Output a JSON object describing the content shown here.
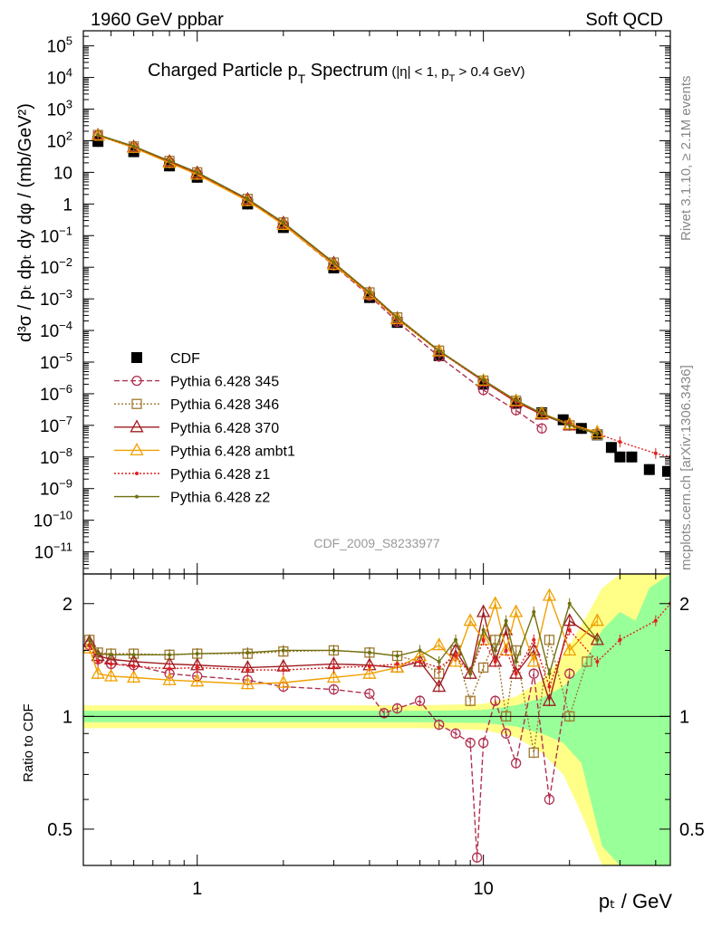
{
  "header": {
    "beam": "1960 GeV ppbar",
    "category": "Soft QCD"
  },
  "side_labels": {
    "rivet": "Rivet 3.1.10, ≥ 2.1M events",
    "mcplots": "mcplots.cern.ch [arXiv:1306.3436]"
  },
  "analysis_id": "CDF_2009_S8233977",
  "chart_data": [
    {
      "panel": "main",
      "type": "scatter",
      "title_main": "Charged Particle p",
      "title_sub": "T",
      "title_rest": " Spectrum",
      "title_cut": "(|η| < 1, p",
      "title_cut_sub": "T",
      "title_cut_rest": " > 0.4 GeV)",
      "ylabel": "d³σ / pₜ dpₜ dy dφ / (mb/GeV²)",
      "xlabel": "pₜ / GeV",
      "x_scale": "log",
      "y_scale": "log",
      "xlim": [
        0.4,
        45
      ],
      "ylim": [
        2e-12,
        300000.0
      ],
      "x_ticks": [
        {
          "value": 1,
          "label": "1"
        },
        {
          "value": 10,
          "label": "10"
        }
      ],
      "y_ticks": [
        {
          "value": 100000.0,
          "base": "10",
          "exp": "5"
        },
        {
          "value": 10000.0,
          "base": "10",
          "exp": "4"
        },
        {
          "value": 1000.0,
          "base": "10",
          "exp": "3"
        },
        {
          "value": 100.0,
          "base": "10",
          "exp": "2"
        },
        {
          "value": 10,
          "base": "10",
          "exp": ""
        },
        {
          "value": 1,
          "base": "1",
          "exp": ""
        },
        {
          "value": 0.1,
          "base": "10",
          "exp": "−1"
        },
        {
          "value": 0.01,
          "base": "10",
          "exp": "−2"
        },
        {
          "value": 0.001,
          "base": "10",
          "exp": "−3"
        },
        {
          "value": 0.0001,
          "base": "10",
          "exp": "−4"
        },
        {
          "value": 1e-05,
          "base": "10",
          "exp": "−5"
        },
        {
          "value": 1e-06,
          "base": "10",
          "exp": "−6"
        },
        {
          "value": 1e-07,
          "base": "10",
          "exp": "−7"
        },
        {
          "value": 1e-08,
          "base": "10",
          "exp": "−8"
        },
        {
          "value": 1e-09,
          "base": "10",
          "exp": "−9"
        },
        {
          "value": 1e-10,
          "base": "10",
          "exp": "−10"
        },
        {
          "value": 1e-11,
          "base": "10",
          "exp": "−11"
        }
      ],
      "legend_position": "left-middle",
      "series": [
        {
          "name": "CDF",
          "color": "#000000",
          "marker": "square-filled",
          "line": "none",
          "x": [
            0.45,
            0.6,
            0.8,
            1.0,
            1.5,
            2.0,
            3.0,
            4.0,
            5.0,
            7.0,
            10.0,
            13.0,
            16.0,
            19.0,
            22.0,
            25.0,
            28.0,
            30.0,
            33.0,
            38.0,
            44.0
          ],
          "y": [
            95,
            45,
            16,
            7,
            1.0,
            0.18,
            0.0095,
            0.0011,
            0.00018,
            1.6e-05,
            2e-06,
            5e-07,
            2.5e-07,
            1.5e-07,
            8e-08,
            5e-08,
            2e-08,
            1e-08,
            1e-08,
            4e-09,
            3.5e-09
          ]
        },
        {
          "name": "Pythia 6.428 345",
          "color": "#b03050",
          "marker": "circle-open",
          "line": "dashed",
          "x": [
            0.45,
            0.6,
            0.8,
            1.0,
            1.5,
            2.0,
            3.0,
            4.0,
            5.0,
            7.0,
            10.0,
            13.0,
            16.0
          ],
          "y": [
            150,
            63,
            21,
            9,
            1.3,
            0.22,
            0.0115,
            0.00125,
            0.00019,
            1.5e-05,
            1.3e-06,
            3e-07,
            8e-08
          ]
        },
        {
          "name": "Pythia 6.428 346",
          "color": "#a07830",
          "marker": "square-open",
          "line": "dotted",
          "x": [
            0.45,
            0.6,
            0.8,
            1.0,
            1.5,
            2.0,
            3.0,
            4.0,
            5.0,
            7.0,
            10.0,
            13.0,
            16.0,
            20.0,
            25.0
          ],
          "y": [
            152,
            66,
            23,
            10,
            1.45,
            0.26,
            0.014,
            0.0016,
            0.00026,
            2.3e-05,
            2.6e-06,
            6e-07,
            2.4e-07,
            1e-07,
            5e-08
          ]
        },
        {
          "name": "Pythia 6.428 370",
          "color": "#a01c20",
          "marker": "triangle-open",
          "line": "solid",
          "x": [
            0.45,
            0.6,
            0.8,
            1.0,
            1.5,
            2.0,
            3.0,
            4.0,
            5.0,
            7.0,
            10.0,
            13.0,
            16.0,
            20.0,
            25.0
          ],
          "y": [
            150,
            64,
            22,
            9.6,
            1.4,
            0.25,
            0.0135,
            0.0015,
            0.00024,
            2.2e-05,
            2.5e-06,
            5.5e-07,
            2.2e-07,
            1e-07,
            6e-08
          ]
        },
        {
          "name": "Pythia 6.428 ambt1",
          "color": "#f0a000",
          "marker": "triangle-open",
          "line": "solid",
          "x": [
            0.45,
            0.6,
            0.8,
            1.0,
            1.5,
            2.0,
            3.0,
            4.0,
            5.0,
            7.0,
            10.0,
            13.0,
            16.0,
            20.0,
            25.0
          ],
          "y": [
            145,
            60,
            20,
            8.5,
            1.25,
            0.22,
            0.012,
            0.0014,
            0.00023,
            2.2e-05,
            2.6e-06,
            6e-07,
            2.4e-07,
            1.1e-07,
            6e-08
          ]
        },
        {
          "name": "Pythia 6.428 z1",
          "color": "#e02020",
          "marker": "dot",
          "line": "dotted",
          "x": [
            0.45,
            0.6,
            0.8,
            1.0,
            1.5,
            2.0,
            3.0,
            4.0,
            5.0,
            7.0,
            10.0,
            13.0,
            16.0,
            20.0,
            25.0,
            30.0,
            40.0,
            45.0
          ],
          "y": [
            150,
            64,
            22,
            9.5,
            1.4,
            0.25,
            0.0135,
            0.0015,
            0.00024,
            2.2e-05,
            2.5e-06,
            5.5e-07,
            2.2e-07,
            1.1e-07,
            5.5e-08,
            3e-08,
            1.3e-08,
            1e-08
          ]
        },
        {
          "name": "Pythia 6.428 z2",
          "color": "#707010",
          "marker": "dot",
          "line": "solid",
          "x": [
            0.45,
            0.6,
            0.8,
            1.0,
            1.5,
            2.0,
            3.0,
            4.0,
            5.0,
            7.0,
            10.0,
            13.0,
            16.0,
            20.0,
            25.0
          ],
          "y": [
            155,
            67,
            23,
            10,
            1.45,
            0.26,
            0.014,
            0.0016,
            0.00026,
            2.3e-05,
            2.7e-06,
            6.2e-07,
            2.4e-07,
            1e-07,
            5.5e-08
          ]
        }
      ]
    },
    {
      "panel": "ratio",
      "type": "line",
      "ylabel": "Ratio to CDF",
      "x_scale": "log",
      "y_scale": "log",
      "xlim": [
        0.4,
        45
      ],
      "ylim": [
        0.4,
        2.4
      ],
      "y_ticks": [
        {
          "value": 2,
          "label": "2"
        },
        {
          "value": 1,
          "label": "1"
        },
        {
          "value": 0.5,
          "label": "0.5"
        }
      ],
      "reference": 1,
      "band_stat": {
        "name": "stat",
        "color": "#99ff99",
        "x": [
          0.4,
          1,
          3,
          6,
          10,
          13,
          16,
          19,
          22,
          26,
          30,
          34,
          38,
          45
        ],
        "low": [
          0.965,
          0.965,
          0.965,
          0.965,
          0.96,
          0.94,
          0.9,
          0.85,
          0.75,
          0.45,
          0.4,
          0.4,
          0.4,
          0.4
        ],
        "high": [
          1.035,
          1.035,
          1.035,
          1.035,
          1.04,
          1.07,
          1.12,
          1.2,
          1.35,
          1.7,
          1.9,
          1.8,
          2.2,
          2.4
        ]
      },
      "band_total": {
        "name": "total",
        "color": "#ffff88",
        "x": [
          0.4,
          1,
          3,
          6,
          10,
          13,
          16,
          19,
          22,
          26,
          30,
          34,
          38,
          45
        ],
        "low": [
          0.93,
          0.93,
          0.93,
          0.93,
          0.92,
          0.88,
          0.8,
          0.7,
          0.55,
          0.4,
          0.4,
          0.4,
          0.4,
          0.4
        ],
        "high": [
          1.07,
          1.07,
          1.07,
          1.07,
          1.08,
          1.13,
          1.25,
          1.45,
          1.75,
          2.2,
          2.4,
          2.4,
          2.4,
          2.4
        ]
      },
      "series": [
        {
          "name": "Pythia 6.428 345",
          "color": "#b03050",
          "marker": "circle-open",
          "line": "dashed",
          "x": [
            0.42,
            0.45,
            0.5,
            0.6,
            0.8,
            1.0,
            1.5,
            2.0,
            3.0,
            4.0,
            4.5,
            5.0,
            6.0,
            7.0,
            8.0,
            9.0,
            9.5,
            10.0,
            11.0,
            12.0,
            13.0,
            15.0,
            17.0,
            20.0
          ],
          "y": [
            1.55,
            1.42,
            1.38,
            1.37,
            1.3,
            1.28,
            1.25,
            1.2,
            1.18,
            1.15,
            1.02,
            1.05,
            1.1,
            0.95,
            0.9,
            0.85,
            0.42,
            0.85,
            1.1,
            0.9,
            0.75,
            1.3,
            0.6,
            1.3
          ]
        },
        {
          "name": "Pythia 6.428 346",
          "color": "#a07830",
          "marker": "square-open",
          "line": "dotted",
          "x": [
            0.42,
            0.45,
            0.5,
            0.6,
            0.8,
            1.0,
            1.5,
            2.0,
            3.0,
            4.0,
            5.0,
            6.0,
            7.0,
            8.0,
            9.0,
            10.0,
            11.0,
            12.0,
            13.0,
            15.0,
            17.0,
            20.0,
            23.0
          ],
          "y": [
            1.6,
            1.48,
            1.47,
            1.47,
            1.46,
            1.47,
            1.47,
            1.49,
            1.5,
            1.48,
            1.45,
            1.4,
            1.3,
            1.5,
            1.1,
            1.35,
            1.6,
            1.0,
            1.5,
            0.8,
            1.6,
            1.0,
            1.4
          ]
        },
        {
          "name": "Pythia 6.428 370",
          "color": "#a01c20",
          "marker": "triangle-open",
          "line": "solid",
          "x": [
            0.42,
            0.45,
            0.5,
            0.6,
            0.8,
            1.0,
            1.5,
            2.0,
            3.0,
            4.0,
            5.0,
            6.0,
            7.0,
            8.0,
            9.0,
            10.0,
            11.0,
            12.0,
            13.0,
            15.0,
            17.0,
            20.0,
            25.0
          ],
          "y": [
            1.58,
            1.45,
            1.42,
            1.4,
            1.38,
            1.37,
            1.35,
            1.36,
            1.38,
            1.37,
            1.35,
            1.4,
            1.2,
            1.5,
            1.3,
            1.9,
            1.4,
            1.7,
            1.3,
            1.5,
            1.1,
            1.8,
            1.6
          ]
        },
        {
          "name": "Pythia 6.428 ambt1",
          "color": "#f0a000",
          "marker": "triangle-open",
          "line": "solid",
          "x": [
            0.42,
            0.45,
            0.5,
            0.6,
            0.8,
            1.0,
            1.5,
            2.0,
            3.0,
            4.0,
            5.0,
            6.0,
            7.0,
            8.0,
            9.0,
            10.0,
            11.0,
            12.0,
            13.0,
            15.0,
            17.0,
            20.0,
            25.0
          ],
          "y": [
            1.52,
            1.3,
            1.28,
            1.27,
            1.25,
            1.24,
            1.22,
            1.23,
            1.27,
            1.3,
            1.35,
            1.45,
            1.55,
            1.4,
            1.8,
            1.6,
            2.0,
            1.5,
            1.9,
            1.4,
            2.1,
            1.5,
            1.8
          ]
        },
        {
          "name": "Pythia 6.428 z1",
          "color": "#e02020",
          "marker": "dot",
          "line": "dotted",
          "x": [
            0.42,
            0.45,
            0.5,
            0.6,
            0.8,
            1.0,
            1.5,
            2.0,
            3.0,
            4.0,
            5.0,
            6.0,
            7.0,
            8.0,
            9.0,
            10.0,
            11.0,
            12.0,
            13.0,
            15.0,
            17.0,
            20.0,
            25.0,
            30.0,
            40.0,
            45.0
          ],
          "y": [
            1.55,
            1.4,
            1.38,
            1.36,
            1.34,
            1.35,
            1.33,
            1.33,
            1.35,
            1.36,
            1.38,
            1.4,
            1.35,
            1.45,
            1.3,
            1.6,
            1.4,
            1.5,
            1.3,
            1.6,
            1.2,
            1.7,
            1.4,
            1.6,
            1.8,
            2.0
          ]
        },
        {
          "name": "Pythia 6.428 z2",
          "color": "#707010",
          "marker": "dot",
          "line": "solid",
          "x": [
            0.42,
            0.45,
            0.5,
            0.6,
            0.8,
            1.0,
            1.5,
            2.0,
            3.0,
            4.0,
            5.0,
            6.0,
            7.0,
            8.0,
            9.0,
            10.0,
            11.0,
            12.0,
            13.0,
            15.0,
            17.0,
            20.0,
            25.0
          ],
          "y": [
            1.6,
            1.47,
            1.46,
            1.46,
            1.46,
            1.47,
            1.48,
            1.5,
            1.5,
            1.48,
            1.45,
            1.5,
            1.4,
            1.6,
            1.3,
            1.7,
            1.5,
            1.8,
            1.4,
            1.9,
            1.3,
            2.0,
            1.6
          ]
        }
      ]
    }
  ]
}
